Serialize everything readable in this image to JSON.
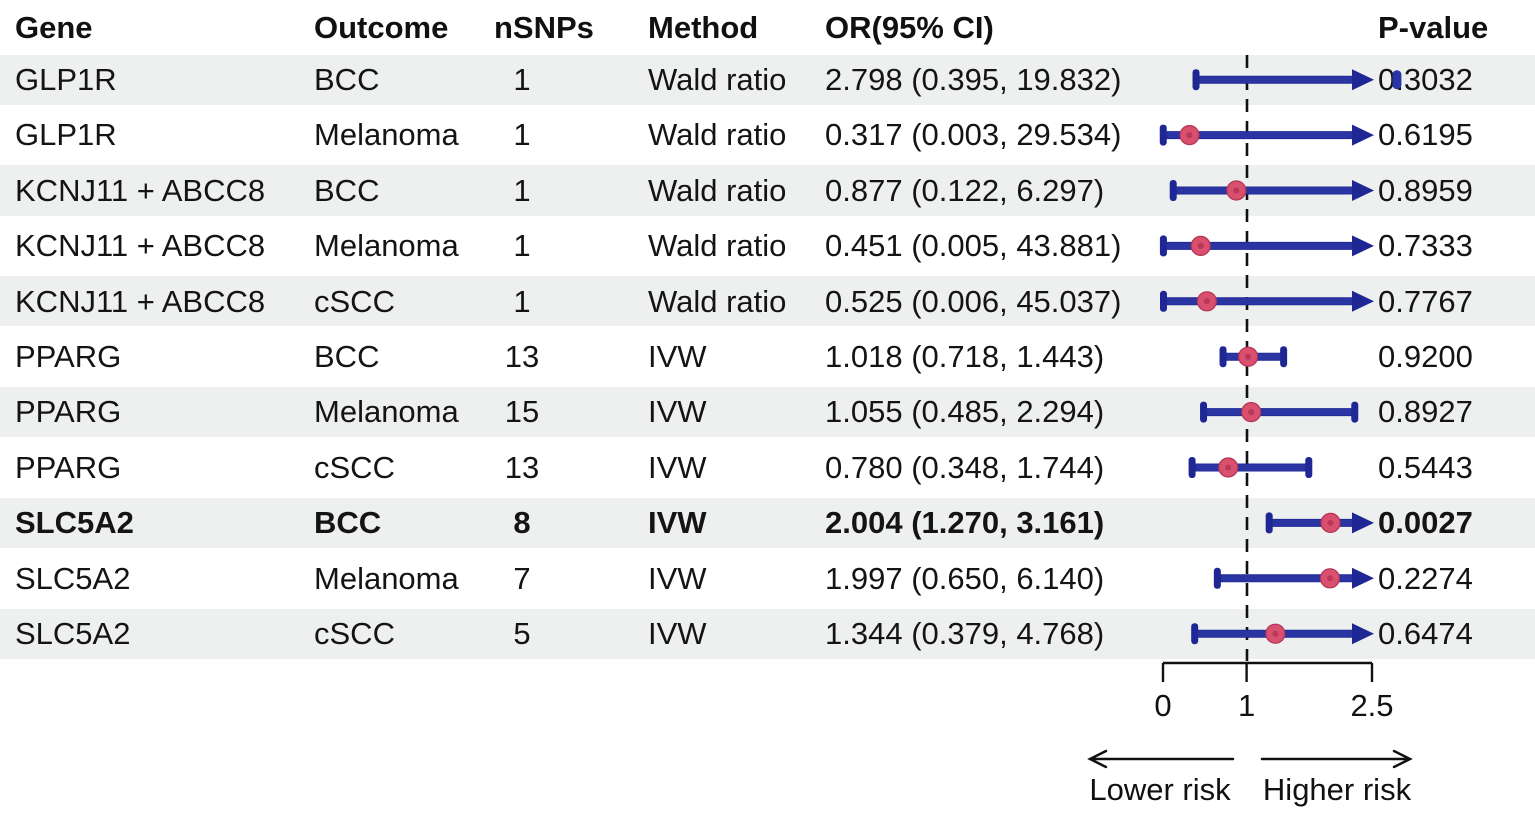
{
  "table": {
    "columns": [
      "Gene",
      "Outcome",
      "nSNPs",
      "Method",
      "OR(95% CI)",
      "P-value"
    ]
  },
  "chart_data": {
    "type": "forest",
    "or_axis": {
      "range": [
        0,
        2.5
      ],
      "ticks": [
        0,
        1,
        2.5
      ],
      "tick_labels": [
        "0",
        "1",
        "2.5"
      ],
      "reference_line": 1
    },
    "direction_labels": {
      "lower": "Lower risk",
      "higher": "Higher risk"
    },
    "rows": [
      {
        "gene": "GLP1R",
        "outcome": "BCC",
        "nsnps": "1",
        "method": "Wald ratio",
        "or": 2.798,
        "ci_lower": 0.395,
        "ci_upper": 19.832,
        "or_ci": "2.798 (0.395, 19.832)",
        "pvalue": "0.3032",
        "bold": false
      },
      {
        "gene": "GLP1R",
        "outcome": "Melanoma",
        "nsnps": "1",
        "method": "Wald ratio",
        "or": 0.317,
        "ci_lower": 0.003,
        "ci_upper": 29.534,
        "or_ci": "0.317 (0.003, 29.534)",
        "pvalue": "0.6195",
        "bold": false
      },
      {
        "gene": "KCNJ11 + ABCC8",
        "outcome": "BCC",
        "nsnps": "1",
        "method": "Wald ratio",
        "or": 0.877,
        "ci_lower": 0.122,
        "ci_upper": 6.297,
        "or_ci": "0.877 (0.122, 6.297)",
        "pvalue": "0.8959",
        "bold": false
      },
      {
        "gene": "KCNJ11 + ABCC8",
        "outcome": "Melanoma",
        "nsnps": "1",
        "method": "Wald ratio",
        "or": 0.451,
        "ci_lower": 0.005,
        "ci_upper": 43.881,
        "or_ci": "0.451 (0.005, 43.881)",
        "pvalue": "0.7333",
        "bold": false
      },
      {
        "gene": "KCNJ11 + ABCC8",
        "outcome": "cSCC",
        "nsnps": "1",
        "method": "Wald ratio",
        "or": 0.525,
        "ci_lower": 0.006,
        "ci_upper": 45.037,
        "or_ci": "0.525 (0.006, 45.037)",
        "pvalue": "0.7767",
        "bold": false
      },
      {
        "gene": "PPARG",
        "outcome": "BCC",
        "nsnps": "13",
        "method": "IVW",
        "or": 1.018,
        "ci_lower": 0.718,
        "ci_upper": 1.443,
        "or_ci": "1.018 (0.718, 1.443)",
        "pvalue": "0.9200",
        "bold": false
      },
      {
        "gene": "PPARG",
        "outcome": "Melanoma",
        "nsnps": "15",
        "method": "IVW",
        "or": 1.055,
        "ci_lower": 0.485,
        "ci_upper": 2.294,
        "or_ci": "1.055 (0.485, 2.294)",
        "pvalue": "0.8927",
        "bold": false
      },
      {
        "gene": "PPARG",
        "outcome": "cSCC",
        "nsnps": "13",
        "method": "IVW",
        "or": 0.78,
        "ci_lower": 0.348,
        "ci_upper": 1.744,
        "or_ci": "0.780 (0.348, 1.744)",
        "pvalue": "0.5443",
        "bold": false
      },
      {
        "gene": "SLC5A2",
        "outcome": "BCC",
        "nsnps": "8",
        "method": "IVW",
        "or": 2.004,
        "ci_lower": 1.27,
        "ci_upper": 3.161,
        "or_ci": "2.004 (1.270, 3.161)",
        "pvalue": "0.0027",
        "bold": true
      },
      {
        "gene": "SLC5A2",
        "outcome": "Melanoma",
        "nsnps": "7",
        "method": "IVW",
        "or": 1.997,
        "ci_lower": 0.65,
        "ci_upper": 6.14,
        "or_ci": "1.997 (0.650, 6.140)",
        "pvalue": "0.2274",
        "bold": false
      },
      {
        "gene": "SLC5A2",
        "outcome": "cSCC",
        "nsnps": "5",
        "method": "IVW",
        "or": 1.344,
        "ci_lower": 0.379,
        "ci_upper": 4.768,
        "or_ci": "1.344 (0.379, 4.768)",
        "pvalue": "0.6474",
        "bold": false
      }
    ]
  },
  "colors": {
    "stripe": "#edf0ee",
    "bar": "#2b34a3",
    "bar_dark": "#1e2793",
    "dot": "#d94f6e",
    "dot_core": "#b23257",
    "line": "#111111"
  }
}
